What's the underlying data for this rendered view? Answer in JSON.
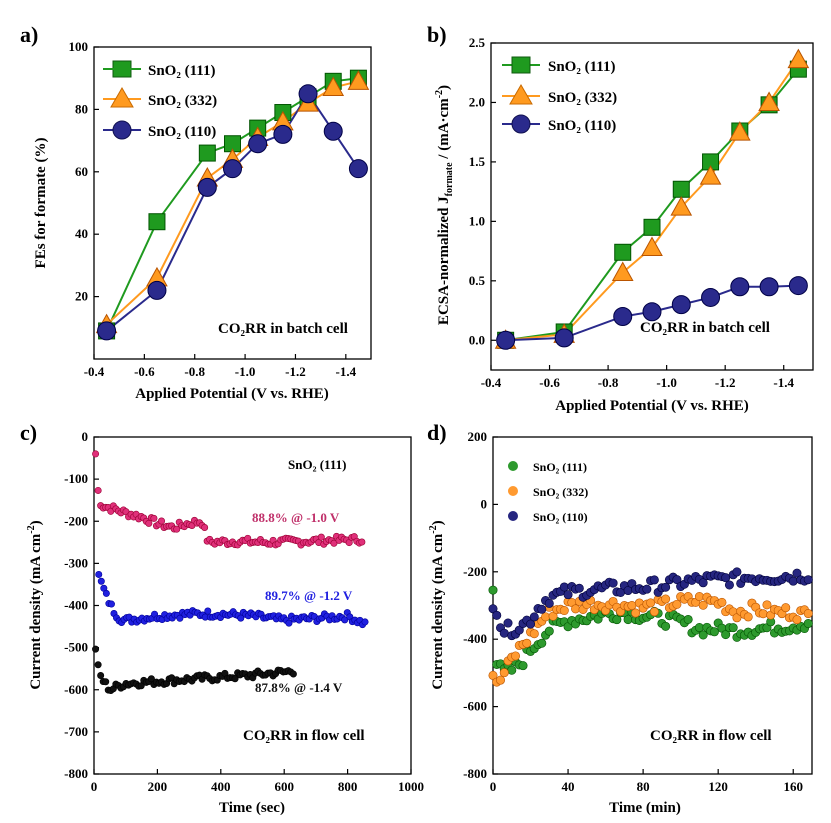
{
  "chart_data": [
    {
      "panel": "a)",
      "type": "line",
      "xlabel": "Applied Potential  (V vs. RHE)",
      "ylabel": "FEs for formate (%)",
      "xlim": [
        -0.4,
        -1.5
      ],
      "ylim": [
        0,
        100
      ],
      "xticks": [
        -0.4,
        -0.6,
        -0.8,
        -1.0,
        -1.2,
        -1.4
      ],
      "yticks": [
        20,
        40,
        60,
        80,
        100
      ],
      "legend_position": "top-left",
      "annotation": "CO₂RR in batch cell",
      "series": [
        {
          "name": "SnO₂ (111)",
          "marker": "square",
          "color": "#1f9a1f",
          "x": [
            -0.45,
            -0.65,
            -0.85,
            -0.95,
            -1.05,
            -1.15,
            -1.25,
            -1.35,
            -1.45
          ],
          "y": [
            9,
            44,
            66,
            69,
            74,
            79,
            84,
            89,
            90
          ]
        },
        {
          "name": "SnO₂ (332)",
          "marker": "triangle",
          "color": "#ff9a1f",
          "x": [
            -0.45,
            -0.65,
            -0.85,
            -0.95,
            -1.05,
            -1.15,
            -1.25,
            -1.35,
            -1.45
          ],
          "y": [
            11,
            26,
            58,
            64,
            71,
            76,
            82,
            87,
            89
          ]
        },
        {
          "name": "SnO₂ (110)",
          "marker": "circle",
          "color": "#2a2a8c",
          "x": [
            -0.45,
            -0.65,
            -0.85,
            -0.95,
            -1.05,
            -1.15,
            -1.25,
            -1.35,
            -1.45
          ],
          "y": [
            9,
            22,
            55,
            61,
            69,
            72,
            85,
            73,
            61
          ]
        }
      ]
    },
    {
      "panel": "b)",
      "type": "line",
      "xlabel": "Applied Potential  (V vs. RHE)",
      "ylabel": "ECSA-normalized J",
      "ylabel_sub": "formate",
      "ylabel_tail": " / (mA·cm",
      "ylabel_sup": "-2",
      "ylabel_end": ")",
      "xlim": [
        -0.4,
        -1.5
      ],
      "ylim": [
        -0.25,
        2.5
      ],
      "xticks": [
        -0.4,
        -0.6,
        -0.8,
        -1.0,
        -1.2,
        -1.4
      ],
      "yticks": [
        0.0,
        0.5,
        1.0,
        1.5,
        2.0,
        2.5
      ],
      "legend_position": "top-left",
      "annotation": "CO₂RR in batch cell",
      "series": [
        {
          "name": "SnO₂ (111)",
          "marker": "square",
          "color": "#1f9a1f",
          "x": [
            -0.45,
            -0.65,
            -0.85,
            -0.95,
            -1.05,
            -1.15,
            -1.25,
            -1.35,
            -1.45
          ],
          "y": [
            0.0,
            0.07,
            0.74,
            0.95,
            1.27,
            1.5,
            1.76,
            1.98,
            2.28
          ]
        },
        {
          "name": "SnO₂ (332)",
          "marker": "triangle",
          "color": "#ff9a1f",
          "x": [
            -0.45,
            -0.65,
            -0.85,
            -0.95,
            -1.05,
            -1.15,
            -1.25,
            -1.35,
            -1.45
          ],
          "y": [
            0.0,
            0.05,
            0.57,
            0.78,
            1.12,
            1.38,
            1.75,
            2.0,
            2.36
          ]
        },
        {
          "name": "SnO₂ (110)",
          "marker": "circle",
          "color": "#2a2a8c",
          "x": [
            -0.45,
            -0.65,
            -0.85,
            -0.95,
            -1.05,
            -1.15,
            -1.25,
            -1.35,
            -1.45
          ],
          "y": [
            0.0,
            0.02,
            0.2,
            0.24,
            0.3,
            0.36,
            0.45,
            0.45,
            0.46
          ]
        }
      ]
    },
    {
      "panel": "c)",
      "type": "scatter",
      "xlabel": "Time (sec)",
      "ylabel": "Current density (mA cm",
      "ylabel_sup": "-2",
      "ylabel_end": ")",
      "xlim": [
        0,
        1000
      ],
      "ylim": [
        -800,
        0
      ],
      "xticks": [
        0,
        200,
        400,
        600,
        800,
        1000
      ],
      "yticks": [
        0,
        -100,
        -200,
        -300,
        -400,
        -500,
        -600,
        -700,
        -800
      ],
      "title_label": "SnO₂ (111)",
      "annotation": "CO₂RR in flow cell",
      "series": [
        {
          "label": "88.8% @ -1.0 V",
          "color": "#e0307a",
          "x": [
            5,
            15,
            30,
            60,
            100,
            150,
            200,
            250,
            300,
            340,
            360,
            450,
            550,
            650,
            750,
            850
          ],
          "y": [
            -40,
            -150,
            -165,
            -170,
            -180,
            -190,
            -205,
            -215,
            -205,
            -200,
            -250,
            -248,
            -250,
            -248,
            -245,
            -243
          ]
        },
        {
          "label": "89.7% @ -1.2 V",
          "color": "#2020e0",
          "x": [
            15,
            25,
            40,
            60,
            80,
            100,
            200,
            300,
            400,
            500,
            600,
            700,
            800,
            860
          ],
          "y": [
            -330,
            -350,
            -380,
            -410,
            -430,
            -435,
            -425,
            -420,
            -420,
            -425,
            -435,
            -430,
            -425,
            -445
          ]
        },
        {
          "label": "87.8% @ -1.4 V",
          "color": "#111111",
          "x": [
            5,
            15,
            30,
            50,
            80,
            100,
            200,
            300,
            400,
            500,
            600,
            630
          ],
          "y": [
            -500,
            -560,
            -580,
            -600,
            -590,
            -585,
            -580,
            -575,
            -570,
            -565,
            -558,
            -555
          ]
        }
      ]
    },
    {
      "panel": "d)",
      "type": "scatter",
      "xlabel": "Time (min)",
      "ylabel": "Current density (mA cm",
      "ylabel_sup": "-2",
      "ylabel_end": ")",
      "xlim": [
        0,
        170
      ],
      "ylim": [
        -800,
        200
      ],
      "xticks": [
        0,
        40,
        80,
        120,
        160
      ],
      "yticks": [
        200,
        0,
        -200,
        -400,
        -600,
        -800
      ],
      "legend_position": "top-left",
      "annotation": "CO₂RR in flow cell",
      "series": [
        {
          "name": "SnO₂ (111)",
          "color": "#2e9a2e",
          "x": [
            0,
            2,
            5,
            10,
            15,
            20,
            25,
            30,
            40,
            50,
            60,
            70,
            80,
            90,
            100,
            110,
            120,
            130,
            140,
            150,
            160,
            168
          ],
          "y": [
            -240,
            -470,
            -500,
            -490,
            -470,
            -430,
            -400,
            -370,
            -345,
            -335,
            -325,
            -320,
            -330,
            -340,
            -350,
            -370,
            -370,
            -375,
            -370,
            -365,
            -360,
            -350
          ]
        },
        {
          "name": "SnO₂ (332)",
          "color": "#ff9a30",
          "x": [
            0,
            2,
            5,
            10,
            15,
            20,
            25,
            30,
            40,
            50,
            60,
            70,
            80,
            90,
            100,
            110,
            120,
            130,
            140,
            150,
            160,
            168
          ],
          "y": [
            -500,
            -540,
            -510,
            -460,
            -420,
            -390,
            -350,
            -320,
            -300,
            -295,
            -295,
            -300,
            -305,
            -300,
            -290,
            -285,
            -290,
            -320,
            -310,
            -320,
            -320,
            -330
          ]
        },
        {
          "name": "SnO₂ (110)",
          "color": "#262680",
          "x": [
            0,
            2,
            5,
            10,
            15,
            20,
            25,
            30,
            40,
            50,
            60,
            70,
            80,
            90,
            100,
            110,
            120,
            130,
            140,
            150,
            160,
            168
          ],
          "y": [
            -290,
            -310,
            -375,
            -370,
            -360,
            -340,
            -300,
            -275,
            -260,
            -255,
            -250,
            -248,
            -245,
            -240,
            -232,
            -225,
            -222,
            -220,
            -215,
            -215,
            -212,
            -210
          ]
        }
      ]
    }
  ]
}
